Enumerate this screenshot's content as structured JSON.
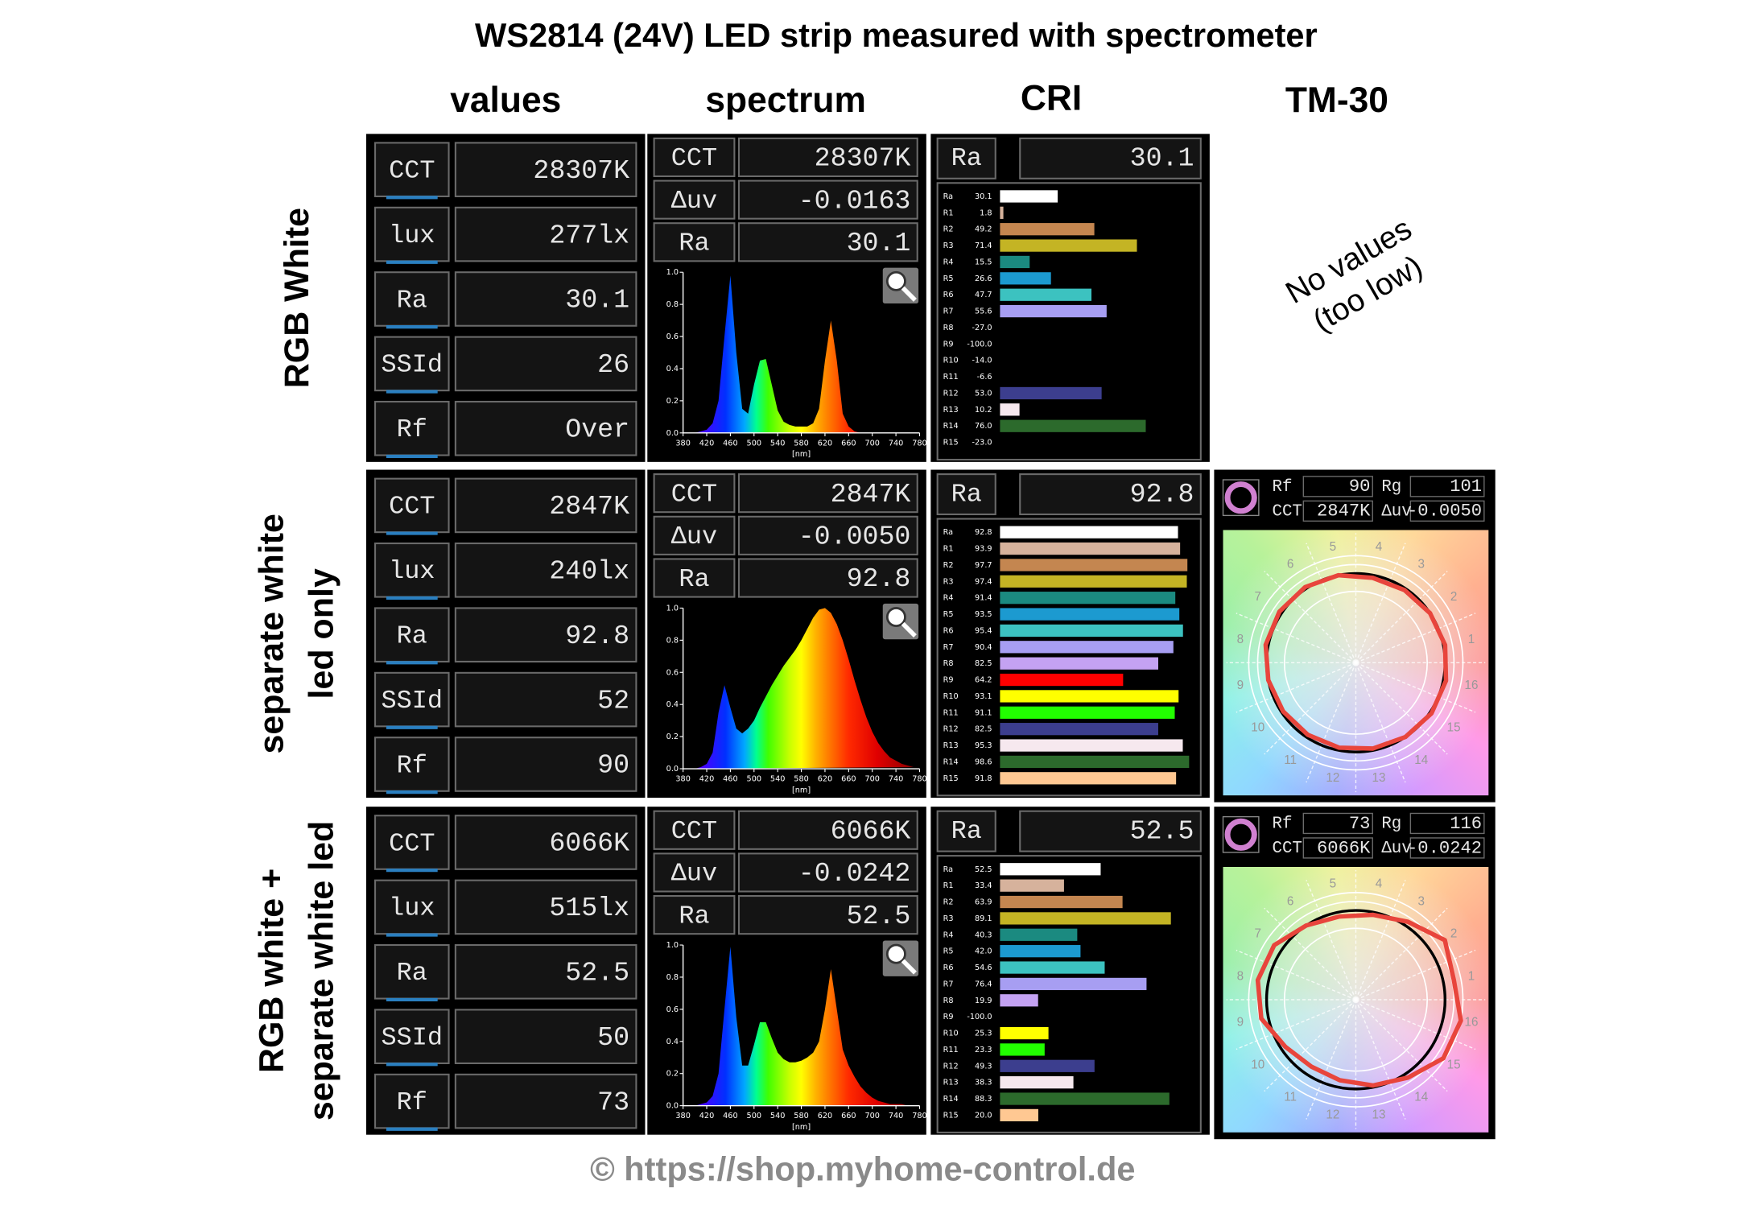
{
  "title": "WS2814 (24V) LED strip measured with spectrometer",
  "column_headers": [
    "values",
    "spectrum",
    "CRI",
    "TM-30"
  ],
  "value_fields": [
    "CCT",
    "lux",
    "Ra",
    "SSId",
    "Rf"
  ],
  "spectrum_fields": [
    "CCT",
    "Δuv",
    "Ra"
  ],
  "spectrum_axis": {
    "xlim": [
      380,
      780
    ],
    "xticks": [
      380,
      420,
      460,
      500,
      540,
      580,
      620,
      660,
      700,
      740,
      780
    ],
    "x_unit": "[nm]",
    "ylim": [
      0,
      1
    ],
    "yticks": [
      {
        "value": 0,
        "label": "0.0"
      },
      0.2,
      0.4,
      0.6,
      0.8,
      {
        "value": 1,
        "label": "1.0"
      }
    ],
    "wavelengths": [
      380,
      390,
      400,
      410,
      420,
      430,
      440,
      450,
      460,
      470,
      480,
      490,
      500,
      510,
      520,
      530,
      540,
      550,
      560,
      570,
      580,
      590,
      600,
      610,
      620,
      630,
      640,
      650,
      660,
      670,
      680,
      690,
      700,
      710,
      720,
      730,
      740,
      750,
      760,
      770,
      780
    ]
  },
  "cri_labels": [
    "Ra",
    "R1",
    "R2",
    "R3",
    "R4",
    "R5",
    "R6",
    "R7",
    "R8",
    "R9",
    "R10",
    "R11",
    "R12",
    "R13",
    "R14",
    "R15"
  ],
  "cri_colors": [
    "#ffffff",
    "#d6b29c",
    "#c48650",
    "#c4b424",
    "#1b8a80",
    "#1c9ad0",
    "#3cc2c0",
    "#a79ef2",
    "#c4a2f2",
    "#ff0000",
    "#ffff00",
    "#22ff00",
    "#3c3e8e",
    "#f6e8ee",
    "#2c6a2c",
    "#ffc892"
  ],
  "cri_xlim": [
    0,
    100
  ],
  "tm30_fields": [
    "Rf",
    "Rg",
    "CCT",
    "Δuv"
  ],
  "hue_bins": [
    1,
    2,
    3,
    4,
    5,
    6,
    7,
    8,
    9,
    10,
    11,
    12,
    13,
    14,
    15,
    16
  ],
  "footer": "© https://shop.myhome-control.de",
  "rows": [
    {
      "label_lines": [
        "RGB White"
      ],
      "values": [
        "28307K",
        "277lx",
        "30.1",
        "26",
        "Over"
      ],
      "spectrum": {
        "texts": [
          "28307K",
          "-0.0163",
          "30.1"
        ],
        "intensity": [
          0,
          0,
          0,
          0.01,
          0.02,
          0.06,
          0.2,
          0.6,
          0.98,
          0.5,
          0.15,
          0.12,
          0.3,
          0.45,
          0.46,
          0.3,
          0.14,
          0.07,
          0.05,
          0.04,
          0.04,
          0.04,
          0.06,
          0.15,
          0.45,
          0.7,
          0.45,
          0.12,
          0.04,
          0.01,
          0,
          0,
          0,
          0,
          0,
          0,
          0,
          0,
          0,
          0,
          0
        ]
      },
      "cri": {
        "values": [
          30.1,
          1.8,
          49.2,
          71.4,
          15.5,
          26.6,
          47.7,
          55.6,
          -27.0,
          -100.0,
          -14.0,
          -6.6,
          53.0,
          10.2,
          76.0,
          -23.0
        ],
        "value_labels": [
          "30.1",
          "1.8",
          "49.2",
          "71.4",
          "15.5",
          "26.6",
          "47.7",
          "55.6",
          "-27.0",
          "-100.0",
          "-14.0",
          "-6.6",
          "53.0",
          "10.2",
          "76.0",
          "-23.0"
        ]
      },
      "tm30": {
        "note_lines": [
          "No values",
          "(too low)"
        ]
      }
    },
    {
      "label_lines": [
        "separate white",
        "led only"
      ],
      "values": [
        "2847K",
        "240lx",
        "92.8",
        "52",
        "90"
      ],
      "spectrum": {
        "texts": [
          "2847K",
          "-0.0050",
          "92.8"
        ],
        "intensity": [
          0,
          0,
          0,
          0.01,
          0.03,
          0.1,
          0.35,
          0.52,
          0.38,
          0.25,
          0.22,
          0.25,
          0.3,
          0.38,
          0.45,
          0.52,
          0.58,
          0.64,
          0.69,
          0.74,
          0.8,
          0.87,
          0.94,
          0.99,
          1.0,
          0.97,
          0.9,
          0.8,
          0.68,
          0.55,
          0.43,
          0.32,
          0.23,
          0.16,
          0.11,
          0.07,
          0.05,
          0.03,
          0.02,
          0.01,
          0.01
        ]
      },
      "cri": {
        "values": [
          92.8,
          93.9,
          97.7,
          97.4,
          91.4,
          93.5,
          95.4,
          90.4,
          82.5,
          64.2,
          93.1,
          91.1,
          82.5,
          95.3,
          98.6,
          91.8
        ],
        "value_labels": [
          "92.8",
          "93.9",
          "97.7",
          "97.4",
          "91.4",
          "93.5",
          "95.4",
          "90.4",
          "82.5",
          "64.2",
          "93.1",
          "91.1",
          "82.5",
          "95.3",
          "98.6",
          "91.8"
        ]
      },
      "tm30": {
        "texts": [
          "90",
          "101",
          "2847K",
          "-0.0050"
        ],
        "hue_bin_ratios": [
          1.02,
          1.0,
          0.98,
          0.97,
          1.0,
          1.02,
          1.03,
          1.03,
          1.0,
          0.98,
          0.97,
          0.97,
          0.98,
          1.0,
          1.02,
          1.03
        ]
      }
    },
    {
      "label_lines": [
        "RGB white +",
        "separate white led"
      ],
      "values": [
        "6066K",
        "515lx",
        "52.5",
        "50",
        "73"
      ],
      "spectrum": {
        "texts": [
          "6066K",
          "-0.0242",
          "52.5"
        ],
        "intensity": [
          0,
          0,
          0,
          0.01,
          0.02,
          0.06,
          0.2,
          0.6,
          0.99,
          0.55,
          0.25,
          0.25,
          0.38,
          0.52,
          0.52,
          0.42,
          0.33,
          0.29,
          0.27,
          0.27,
          0.28,
          0.3,
          0.33,
          0.4,
          0.6,
          0.85,
          0.6,
          0.35,
          0.25,
          0.18,
          0.12,
          0.08,
          0.05,
          0.03,
          0.02,
          0.01,
          0.01,
          0.01,
          0,
          0,
          0
        ]
      },
      "cri": {
        "values": [
          52.5,
          33.4,
          63.9,
          89.1,
          40.3,
          42.0,
          54.6,
          76.4,
          19.9,
          -100.0,
          25.3,
          23.3,
          49.3,
          38.3,
          88.3,
          20.0
        ],
        "value_labels": [
          "52.5",
          "33.4",
          "63.9",
          "89.1",
          "40.3",
          "42.0",
          "54.6",
          "76.4",
          "19.9",
          "-100.0",
          "25.3",
          "23.3",
          "49.3",
          "38.3",
          "88.3",
          "20.0"
        ]
      },
      "tm30": {
        "texts": [
          "73",
          "116",
          "6066K",
          "-0.0242"
        ],
        "hue_bin_ratios": [
          1.12,
          1.2,
          1.05,
          0.97,
          0.95,
          1.0,
          1.1,
          1.12,
          1.08,
          0.95,
          0.9,
          0.92,
          0.98,
          1.05,
          1.18,
          1.2
        ]
      }
    }
  ]
}
